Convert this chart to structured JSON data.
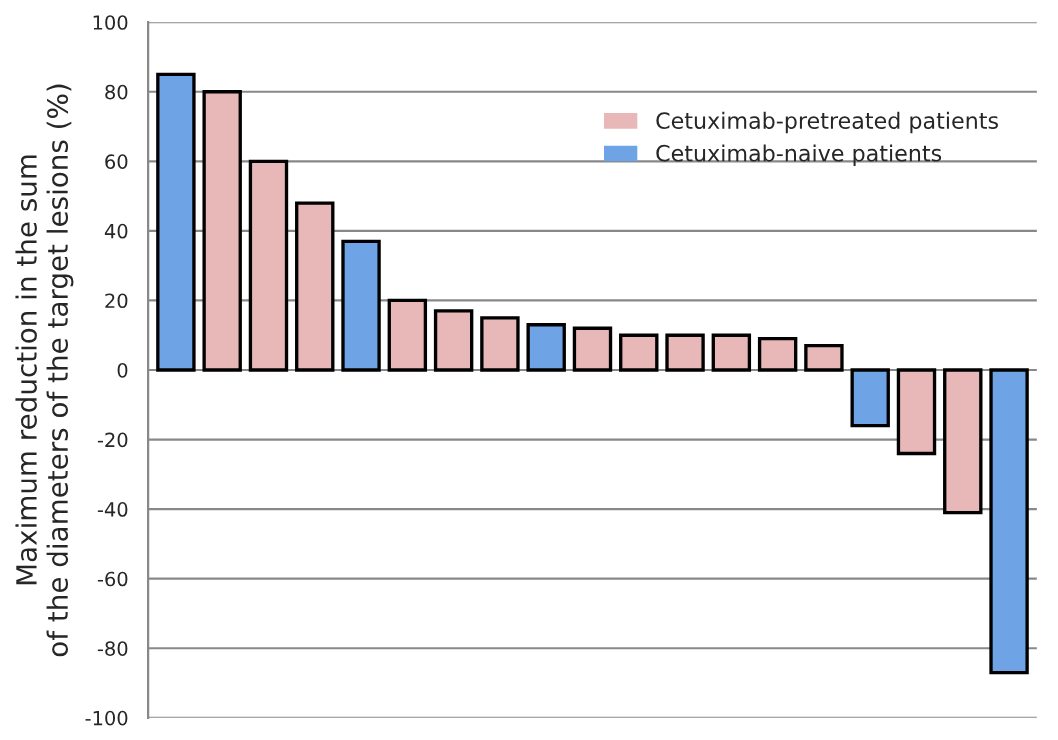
{
  "chart_data": {
    "type": "bar",
    "ylabel": "Maximum reduction in the sum\nof the diameters of the target lesions (%)",
    "categories": [
      null,
      null,
      null,
      null,
      null,
      null,
      null,
      null,
      null,
      null,
      null,
      null,
      null,
      null,
      null,
      null,
      null,
      null,
      null
    ],
    "series": [
      {
        "name": "Cetuximab-pretreated patients",
        "color": "#e8b7b7",
        "values": [
          null,
          80,
          60,
          48,
          null,
          20,
          17,
          15,
          null,
          12,
          10,
          10,
          10,
          9,
          7,
          null,
          -24,
          -41,
          null
        ]
      },
      {
        "name": "Cetuximab-naive patients",
        "color": "#6ea4e6",
        "values": [
          85,
          null,
          null,
          null,
          37,
          null,
          null,
          null,
          13,
          null,
          null,
          null,
          null,
          null,
          null,
          -16,
          null,
          null,
          -87
        ]
      }
    ],
    "ylim": [
      -100,
      100
    ],
    "yticks": [
      -100,
      -80,
      -60,
      -40,
      -20,
      0,
      20,
      40,
      60,
      80,
      100
    ],
    "grid": "y",
    "legend": "top right"
  }
}
